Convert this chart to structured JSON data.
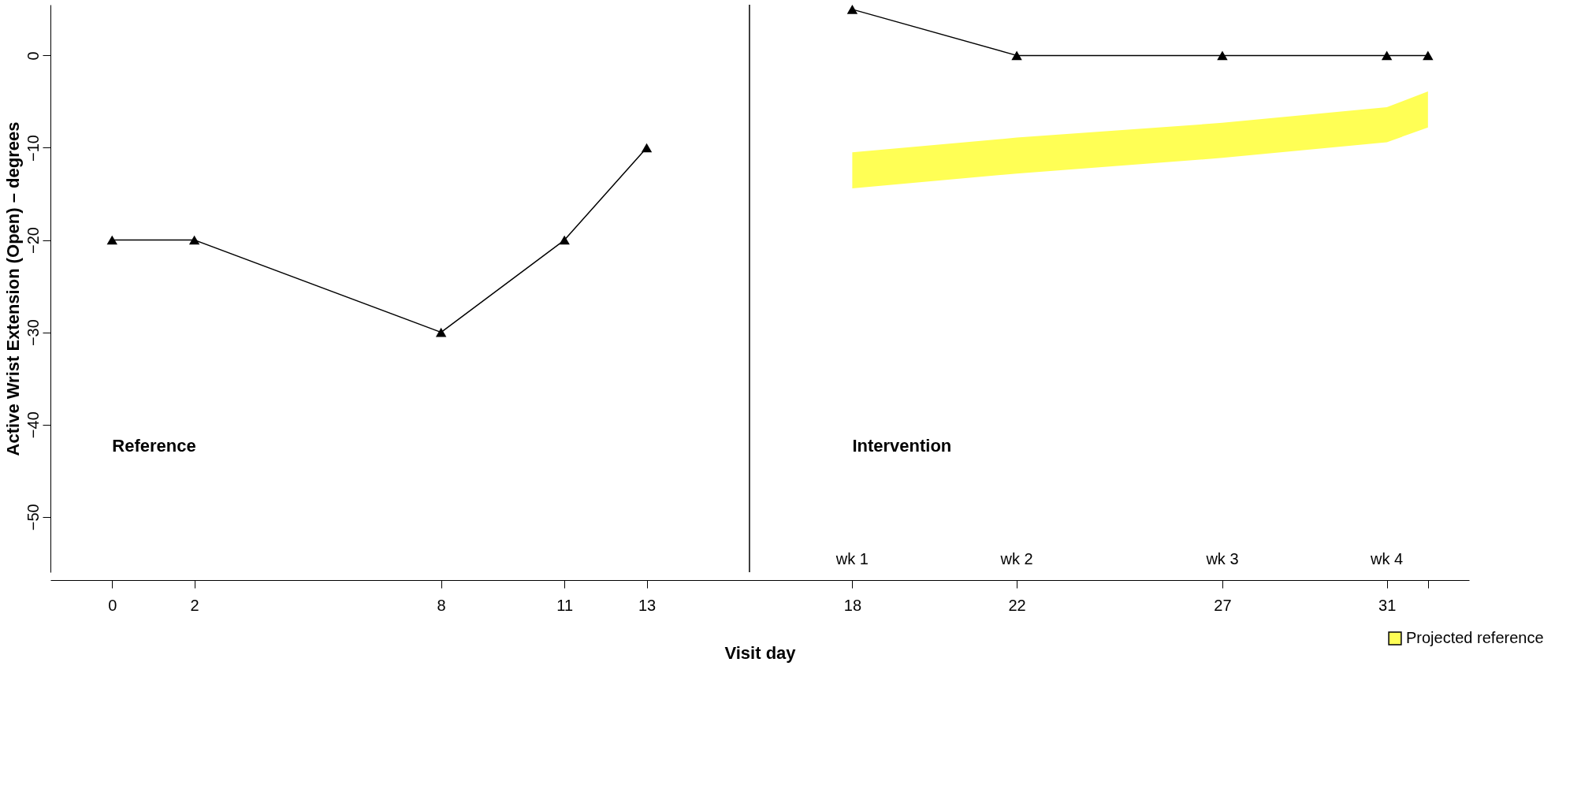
{
  "chart_data": {
    "type": "line",
    "xlabel": "Visit day",
    "ylabel": "Active Wrist Extension (Open) – degrees",
    "xlim": [
      -1.5,
      33
    ],
    "xticks": [
      0,
      2,
      8,
      11,
      13,
      18,
      22,
      27,
      31,
      {
        "value": 32,
        "label": null
      }
    ],
    "ylim": [
      -56,
      5.5
    ],
    "yticks": [
      0,
      -10,
      -20,
      -30,
      -40,
      -50
    ],
    "grid": false,
    "marker": "triangle",
    "line_style": "solid",
    "legend": "bottom right",
    "series": [
      {
        "color": "#000000",
        "x": [
          0,
          2,
          8,
          11,
          13
        ],
        "values": [
          -20,
          -20,
          -30,
          -20,
          -10
        ]
      },
      {
        "color": "#000000",
        "x": [
          18,
          22,
          27,
          31,
          32
        ],
        "values": [
          5,
          0,
          0,
          0,
          0
        ]
      },
      {
        "name": "Projected reference",
        "color": "#ffff55",
        "x": [
          18,
          22,
          27,
          31,
          32
        ],
        "values": [
          null,
          null,
          null,
          null,
          null
        ],
        "lower": [
          -14.4,
          -12.8,
          -11.1,
          -9.4,
          -7.8
        ],
        "upper": [
          -10.5,
          -8.9,
          -7.3,
          -5.6,
          -3.9
        ]
      }
    ],
    "ref_lines": [
      {
        "axis": "x",
        "value": 15.5,
        "label": null,
        "color": "#000000"
      }
    ],
    "annotations": [
      "Reference",
      "Intervention",
      "wk 1",
      "wk 2",
      "wk 3",
      "wk 4"
    ]
  }
}
